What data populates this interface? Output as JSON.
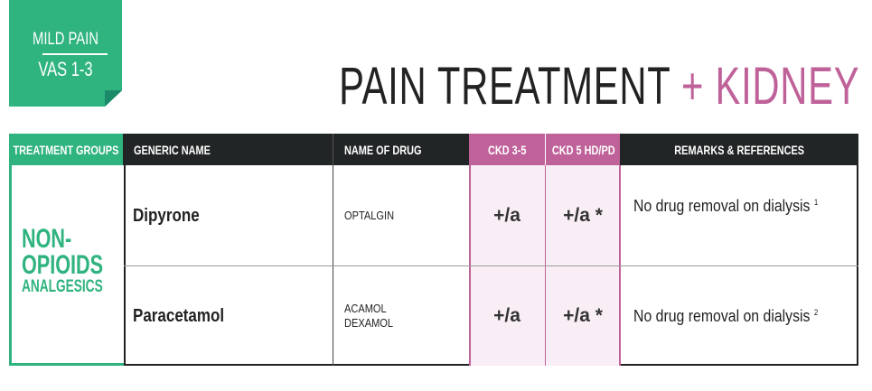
{
  "badge": {
    "line1": "MILD PAIN",
    "line2": "VAS 1-3"
  },
  "title": {
    "main": "PAIN TREATMENT",
    "plus": "+",
    "accent": "KIDNEY"
  },
  "colors": {
    "green": "#2fb37f",
    "pink": "#c0629a",
    "dark": "#222526"
  },
  "table": {
    "headers": [
      "TREATMENT GROUPS",
      "GENERIC NAME",
      "NAME OF DRUG",
      "CKD 3-5",
      "CKD 5 HD/PD",
      "REMARKS & REFERENCES"
    ],
    "group": {
      "line1": "NON-",
      "line2": "OPIOIDS",
      "line3": "ANALGESICS"
    },
    "rows": [
      {
        "generic": "Dipyrone",
        "brands": [
          "OPTALGIN"
        ],
        "ckd35": "+/a",
        "ckd5": "+/a *",
        "remark": "No drug removal on dialysis",
        "ref": "1"
      },
      {
        "generic": "Paracetamol",
        "brands": [
          "ACAMOL",
          "DEXAMOL"
        ],
        "ckd35": "+/a",
        "ckd5": "+/a *",
        "remark": "No drug removal on dialysis",
        "ref": "2"
      }
    ]
  }
}
